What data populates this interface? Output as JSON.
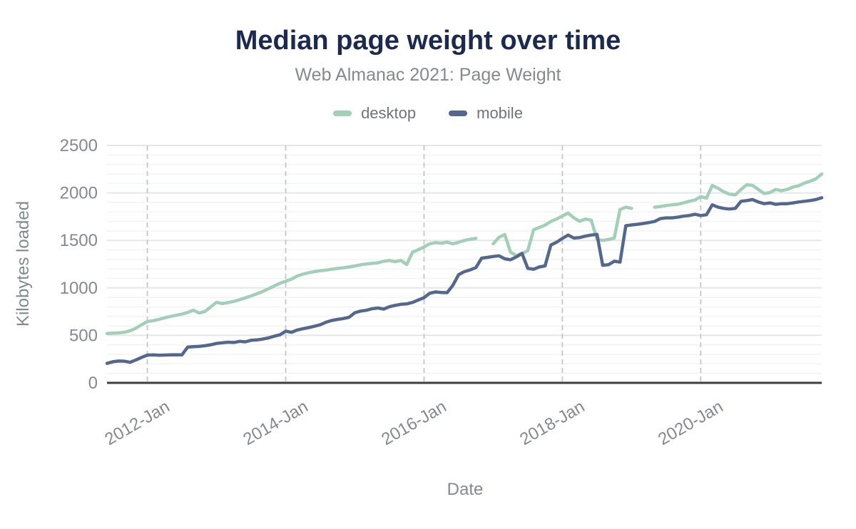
{
  "chart_data": {
    "type": "line",
    "title": "Median page weight over time",
    "subtitle": "Web Almanac 2021: Page Weight",
    "xlabel": "Date",
    "ylabel": "Kilobytes loaded",
    "ylim": [
      0,
      2500
    ],
    "ytick_step": 500,
    "minor_step": 100,
    "yticks": [
      "0",
      "500",
      "1000",
      "1500",
      "2000",
      "2500"
    ],
    "legend_position": "top-center",
    "grid": "major-horizontal, minor-horizontal, dashed-vertical-at-xticks",
    "months": [
      "2011-06",
      "2011-07",
      "2011-08",
      "2011-09",
      "2011-10",
      "2011-11",
      "2011-12",
      "2012-01",
      "2012-02",
      "2012-03",
      "2012-04",
      "2012-05",
      "2012-06",
      "2012-07",
      "2012-08",
      "2012-09",
      "2012-10",
      "2012-11",
      "2012-12",
      "2013-01",
      "2013-02",
      "2013-03",
      "2013-04",
      "2013-05",
      "2013-06",
      "2013-07",
      "2013-08",
      "2013-09",
      "2013-10",
      "2013-11",
      "2013-12",
      "2014-01",
      "2014-02",
      "2014-03",
      "2014-04",
      "2014-05",
      "2014-06",
      "2014-07",
      "2014-08",
      "2014-09",
      "2014-10",
      "2014-11",
      "2014-12",
      "2015-01",
      "2015-02",
      "2015-03",
      "2015-04",
      "2015-05",
      "2015-06",
      "2015-07",
      "2015-08",
      "2015-09",
      "2015-10",
      "2015-11",
      "2015-12",
      "2016-01",
      "2016-02",
      "2016-03",
      "2016-04",
      "2016-05",
      "2016-06",
      "2016-07",
      "2016-08",
      "2016-09",
      "2016-10",
      "2016-11",
      "2016-12",
      "2017-01",
      "2017-02",
      "2017-03",
      "2017-04",
      "2017-05",
      "2017-06",
      "2017-07",
      "2017-08",
      "2017-09",
      "2017-10",
      "2017-11",
      "2017-12",
      "2018-01",
      "2018-02",
      "2018-03",
      "2018-04",
      "2018-05",
      "2018-06",
      "2018-07",
      "2018-08",
      "2018-09",
      "2018-10",
      "2018-11",
      "2018-12",
      "2019-01",
      "2019-02",
      "2019-03",
      "2019-04",
      "2019-05",
      "2019-06",
      "2019-07",
      "2019-08",
      "2019-09",
      "2019-10",
      "2019-11",
      "2019-12",
      "2020-01",
      "2020-02",
      "2020-03",
      "2020-04",
      "2020-05",
      "2020-06",
      "2020-07",
      "2020-08",
      "2020-09",
      "2020-10",
      "2020-11",
      "2020-12",
      "2021-01",
      "2021-02",
      "2021-03",
      "2021-04",
      "2021-05",
      "2021-06",
      "2021-07",
      "2021-08",
      "2021-09",
      "2021-10"
    ],
    "xticks": [
      {
        "label": "2012-Jan",
        "index": 7
      },
      {
        "label": "2014-Jan",
        "index": 31
      },
      {
        "label": "2016-Jan",
        "index": 55
      },
      {
        "label": "2018-Jan",
        "index": 79
      },
      {
        "label": "2020-Jan",
        "index": 103
      }
    ],
    "series": [
      {
        "name": "desktop",
        "color": "#a3cfb8",
        "values": [
          520,
          523,
          526,
          532,
          548,
          575,
          612,
          646,
          655,
          668,
          685,
          700,
          712,
          724,
          742,
          765,
          735,
          752,
          800,
          848,
          835,
          845,
          858,
          875,
          895,
          915,
          938,
          962,
          990,
          1020,
          1048,
          1070,
          1092,
          1125,
          1145,
          1160,
          1172,
          1180,
          1188,
          1197,
          1205,
          1212,
          1221,
          1231,
          1243,
          1252,
          1258,
          1264,
          1280,
          1288,
          1276,
          1289,
          1246,
          1376,
          1402,
          1431,
          1465,
          1477,
          1470,
          1482,
          1464,
          1480,
          1500,
          1512,
          1522,
          null,
          null,
          1464,
          1532,
          1562,
          1377,
          1339,
          1363,
          1392,
          1612,
          1637,
          1661,
          1700,
          1726,
          1757,
          1788,
          1737,
          1701,
          1725,
          1713,
          1512,
          1500,
          1510,
          1525,
          1826,
          1850,
          1837,
          null,
          null,
          null,
          1850,
          1857,
          1867,
          1875,
          1880,
          1895,
          1912,
          1925,
          1961,
          1945,
          2079,
          2049,
          2012,
          1987,
          1979,
          2037,
          2087,
          2079,
          2037,
          1994,
          2004,
          2037,
          2024,
          2037,
          2062,
          2075,
          2104,
          2124,
          2149,
          2200
        ]
      },
      {
        "name": "mobile",
        "color": "#54678c",
        "values": [
          205,
          222,
          230,
          228,
          216,
          241,
          268,
          292,
          295,
          291,
          293,
          295,
          296,
          294,
          376,
          381,
          384,
          391,
          401,
          415,
          422,
          428,
          425,
          437,
          432,
          448,
          452,
          461,
          473,
          491,
          505,
          544,
          532,
          556,
          570,
          582,
          596,
          612,
          639,
          657,
          668,
          677,
          691,
          739,
          756,
          764,
          781,
          788,
          777,
          802,
          816,
          827,
          832,
          847,
          872,
          897,
          944,
          957,
          952,
          950,
          1026,
          1139,
          1171,
          1189,
          1214,
          1313,
          1321,
          1331,
          1338,
          1306,
          1296,
          1326,
          1363,
          1206,
          1196,
          1221,
          1231,
          1451,
          1481,
          1521,
          1556,
          1525,
          1530,
          1545,
          1556,
          1563,
          1238,
          1244,
          1281,
          1271,
          1655,
          1663,
          1670,
          1678,
          1688,
          1700,
          1730,
          1737,
          1737,
          1745,
          1755,
          1762,
          1775,
          1762,
          1770,
          1875,
          1850,
          1837,
          1830,
          1837,
          1912,
          1920,
          1930,
          1905,
          1887,
          1895,
          1880,
          1887,
          1887,
          1895,
          1905,
          1912,
          1920,
          1930,
          1949
        ]
      }
    ],
    "style": {
      "title_color": "#1b2a4e",
      "subtitle_color": "#85898d",
      "legend_text_color": "#6f7478",
      "grid_major": "#e4e6e9",
      "grid_minor": "#f2f3f5",
      "tick_dash": "#c8cbce",
      "axis": "#3c3e42",
      "label": "#85898d"
    }
  }
}
